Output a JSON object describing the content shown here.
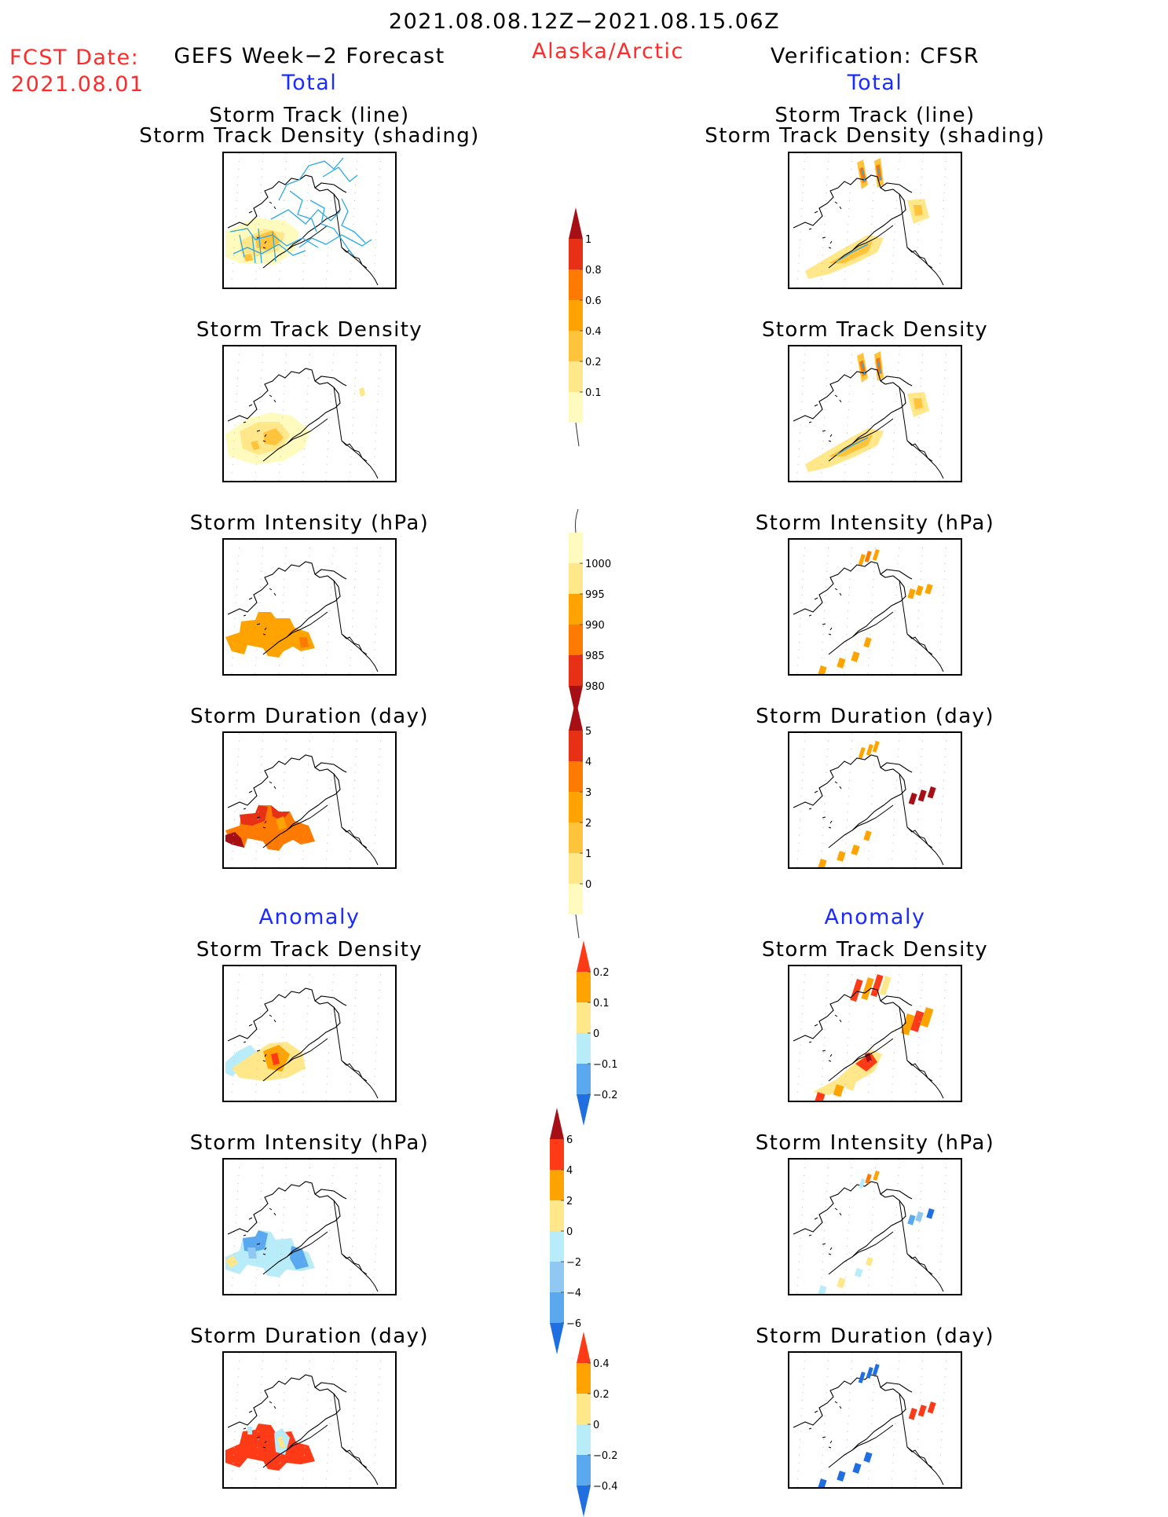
{
  "header": {
    "date_range": "2021.08.08.12Z−2021.08.15.06Z",
    "fcst_label": "FCST Date:",
    "fcst_date": "2021.08.01",
    "left_title": "GEFS Week−2 Forecast",
    "region": "Alaska/Arctic",
    "right_title": "Verification: CFSR",
    "total_left": "Total",
    "total_right": "Total",
    "anomaly_left": "Anomaly",
    "anomaly_right": "Anomaly"
  },
  "panels": {
    "track_line_1": "Storm Track (line)",
    "track_line_2": "Storm Track Density (shading)",
    "density": "Storm Track Density",
    "intensity": "Storm Intensity (hPa)",
    "duration": "Storm Duration (day)"
  },
  "colorbars": {
    "density_total": {
      "labels": [
        "1",
        "0.8",
        "0.6",
        "0.4",
        "0.2",
        "0.1"
      ],
      "colors": [
        "#a50f15",
        "#e63117",
        "#ff7a00",
        "#ffa300",
        "#ffc43c",
        "#ffe78a",
        "#fffbbe"
      ]
    },
    "intensity_total": {
      "labels": [
        "1000",
        "995",
        "990",
        "985",
        "980"
      ],
      "colors": [
        "#fffbbe",
        "#ffe78a",
        "#ffa300",
        "#ff7a00",
        "#e63117",
        "#a50f15"
      ]
    },
    "duration_total": {
      "labels": [
        "5",
        "4",
        "3",
        "2",
        "1",
        "0"
      ],
      "colors": [
        "#a50f15",
        "#e63117",
        "#ff7a00",
        "#ffa300",
        "#ffc43c",
        "#ffe78a",
        "#fffbbe"
      ]
    },
    "density_anom": {
      "labels": [
        "0.2",
        "0.1",
        "0",
        "−0.1",
        "−0.2"
      ],
      "colors": [
        "#ff3b17",
        "#ffa300",
        "#ffe78a",
        "#b8ecf8",
        "#5aa8f0",
        "#1f6fe0"
      ]
    },
    "intensity_anom": {
      "labels": [
        "6",
        "4",
        "2",
        "0",
        "−2",
        "−4",
        "−6"
      ],
      "colors": [
        "#a50f15",
        "#ff3b17",
        "#ffa300",
        "#ffe78a",
        "#b8ecf8",
        "#90c8f4",
        "#5aa8f0",
        "#1f6fe0"
      ]
    },
    "duration_anom": {
      "labels": [
        "0.4",
        "0.2",
        "0",
        "−0.2",
        "−0.4"
      ],
      "colors": [
        "#ff3b17",
        "#ffa300",
        "#ffe78a",
        "#b8ecf8",
        "#5aa8f0",
        "#1f6fe0"
      ]
    }
  },
  "chart_data": {
    "type": "heatmap",
    "title": "2021.08.08.12Z−2021.08.15.06Z",
    "panels": [
      {
        "column": "GEFS Week−2 Forecast",
        "section": "Total",
        "field": "Storm Track (line) / Storm Track Density (shading)",
        "colorbar": "density_total"
      },
      {
        "column": "Verification: CFSR",
        "section": "Total",
        "field": "Storm Track (line) / Storm Track Density (shading)",
        "colorbar": "density_total"
      },
      {
        "column": "GEFS Week−2 Forecast",
        "section": "Total",
        "field": "Storm Track Density",
        "colorbar": "density_total"
      },
      {
        "column": "Verification: CFSR",
        "section": "Total",
        "field": "Storm Track Density",
        "colorbar": "density_total"
      },
      {
        "column": "GEFS Week−2 Forecast",
        "section": "Total",
        "field": "Storm Intensity (hPa)",
        "colorbar": "intensity_total"
      },
      {
        "column": "Verification: CFSR",
        "section": "Total",
        "field": "Storm Intensity (hPa)",
        "colorbar": "intensity_total"
      },
      {
        "column": "GEFS Week−2 Forecast",
        "section": "Total",
        "field": "Storm Duration (day)",
        "colorbar": "duration_total"
      },
      {
        "column": "Verification: CFSR",
        "section": "Total",
        "field": "Storm Duration (day)",
        "colorbar": "duration_total"
      },
      {
        "column": "GEFS Week−2 Forecast",
        "section": "Anomaly",
        "field": "Storm Track Density",
        "colorbar": "density_anom"
      },
      {
        "column": "Verification: CFSR",
        "section": "Anomaly",
        "field": "Storm Track Density",
        "colorbar": "density_anom"
      },
      {
        "column": "GEFS Week−2 Forecast",
        "section": "Anomaly",
        "field": "Storm Intensity (hPa)",
        "colorbar": "intensity_anom"
      },
      {
        "column": "Verification: CFSR",
        "section": "Anomaly",
        "field": "Storm Intensity (hPa)",
        "colorbar": "intensity_anom"
      },
      {
        "column": "GEFS Week−2 Forecast",
        "section": "Anomaly",
        "field": "Storm Duration (day)",
        "colorbar": "duration_anom"
      },
      {
        "column": "Verification: CFSR",
        "section": "Anomaly",
        "field": "Storm Duration (day)",
        "colorbar": "duration_anom"
      }
    ]
  }
}
